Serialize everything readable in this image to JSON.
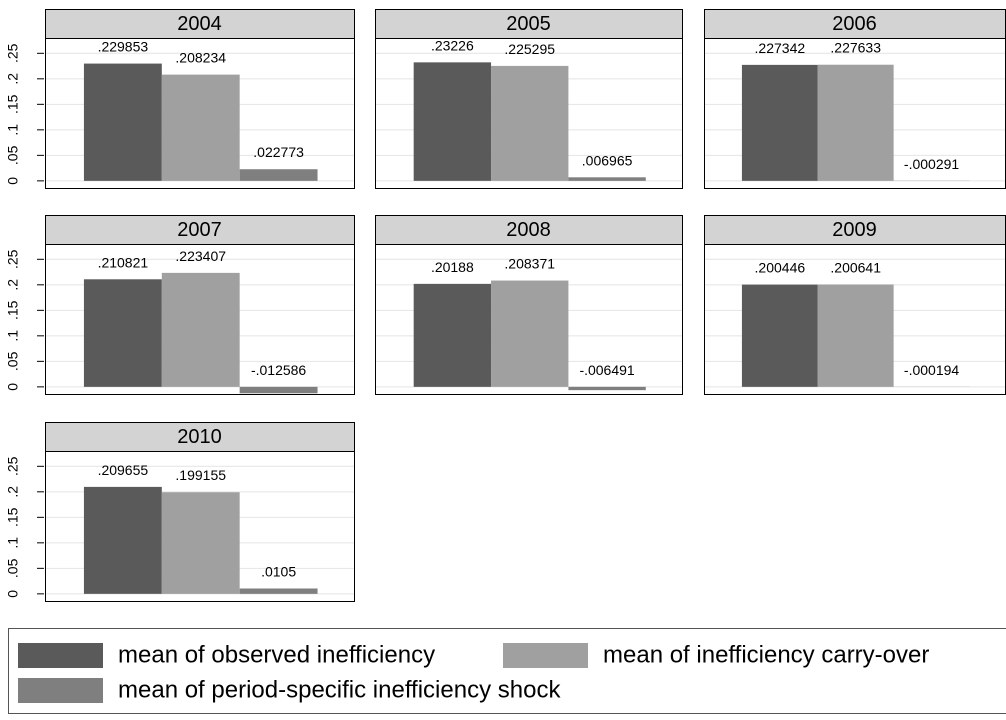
{
  "chart_data": {
    "type": "bar",
    "facets": [
      "2004",
      "2005",
      "2006",
      "2007",
      "2008",
      "2009",
      "2010"
    ],
    "series": [
      {
        "name": "mean of observed inefficiency",
        "color": "#5a5a5a",
        "values": [
          0.229853,
          0.23226,
          0.227342,
          0.210821,
          0.20188,
          0.200446,
          0.209655
        ],
        "value_labels": [
          ".229853",
          ".23226",
          ".227342",
          ".210821",
          ".20188",
          ".200446",
          ".209655"
        ]
      },
      {
        "name": "mean of inefficiency carry-over",
        "color": "#a0a0a0",
        "values": [
          0.208234,
          0.225295,
          0.227633,
          0.223407,
          0.208371,
          0.200641,
          0.199155
        ],
        "value_labels": [
          ".208234",
          ".225295",
          ".227633",
          ".223407",
          ".208371",
          ".200641",
          ".199155"
        ]
      },
      {
        "name": "mean of period-specific inefficiency shock",
        "color": "#7f7f7f",
        "values": [
          0.022773,
          0.006965,
          -0.000291,
          -0.012586,
          -0.006491,
          -0.000194,
          0.0105
        ],
        "value_labels": [
          ".022773",
          ".006965",
          "-.000291",
          "-.012586",
          "-.006491",
          "-.000194",
          ".0105"
        ]
      }
    ],
    "ylim": [
      -0.014,
      0.28
    ],
    "yticks": [
      0,
      {
        "value": 0.05,
        "label": ".05"
      },
      {
        "value": 0.1,
        "label": ".1"
      },
      {
        "value": 0.15,
        "label": ".15"
      },
      {
        "value": 0.2,
        "label": ".2"
      },
      {
        "value": 0.25,
        "label": ".25"
      }
    ],
    "grid": true
  }
}
